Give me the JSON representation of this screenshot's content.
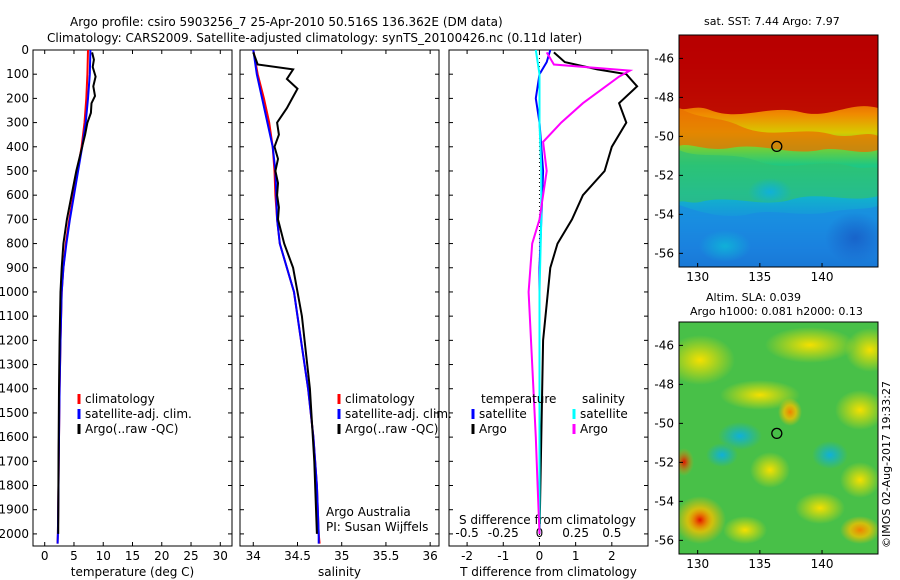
{
  "header": {
    "title_line1": "Argo profile: csiro 5903256_7 25-Apr-2010 50.516S 136.362E (DM data)",
    "title_line2": "Climatology: CARS2009. Satellite-adjusted climatology: synTS_20100426.nc (0.11d later)"
  },
  "colors": {
    "climatology": "#ff0000",
    "satellite": "#0000ff",
    "argo": "#000000",
    "salinity_satellite": "#00ffff",
    "salinity_argo": "#ff00ff"
  },
  "chart_data": [
    {
      "type": "line",
      "name": "temperature-profile",
      "xlabel": "temperature (deg C)",
      "ylabel": "",
      "xlim": [
        -2,
        32
      ],
      "ylim": [
        2050,
        0
      ],
      "xticks": [
        "0",
        "5",
        "10",
        "15",
        "20",
        "25",
        "30"
      ],
      "xtick_values": [
        0,
        5,
        10,
        15,
        20,
        25,
        30
      ],
      "yticks": [
        "0",
        "100",
        "200",
        "300",
        "400",
        "500",
        "600",
        "700",
        "800",
        "900",
        "1000",
        "1100",
        "1200",
        "1300",
        "1400",
        "1500",
        "1600",
        "1700",
        "1800",
        "1900",
        "2000"
      ],
      "ytick_values": [
        0,
        100,
        200,
        300,
        400,
        500,
        600,
        700,
        800,
        900,
        1000,
        1100,
        1200,
        1300,
        1400,
        1500,
        1600,
        1700,
        1800,
        1900,
        2000
      ],
      "legend": [
        "climatology",
        "satellite-adj. clim.",
        "Argo(..raw -QC)"
      ],
      "series": [
        {
          "name": "climatology",
          "color": "#ff0000",
          "x": [
            7.4,
            7.3,
            7.1,
            6.8,
            6.3,
            5.6,
            4.9,
            4.2,
            3.6,
            3.2,
            2.9,
            2.7,
            2.55,
            2.45,
            2.35,
            2.3,
            2.25,
            2.2,
            2.2
          ],
          "y": [
            0,
            100,
            200,
            300,
            400,
            500,
            600,
            700,
            800,
            900,
            1000,
            1200,
            1400,
            1600,
            1800,
            1900,
            2000,
            2030,
            2040
          ]
        },
        {
          "name": "satellite-adj. clim.",
          "color": "#0000ff",
          "x": [
            7.8,
            7.7,
            7.4,
            7.0,
            6.4,
            5.7,
            5.0,
            4.3,
            3.7,
            3.2,
            2.9,
            2.7,
            2.55,
            2.45,
            2.35,
            2.3,
            2.25,
            2.2
          ],
          "y": [
            0,
            100,
            200,
            300,
            400,
            500,
            600,
            700,
            800,
            900,
            1000,
            1200,
            1400,
            1600,
            1800,
            1900,
            2000,
            2040
          ]
        },
        {
          "name": "Argo(..raw -QC)",
          "color": "#000000",
          "x": [
            8.1,
            8.4,
            8.2,
            8.7,
            8.3,
            8.6,
            8.0,
            7.9,
            7.3,
            6.9,
            6.2,
            5.4,
            4.6,
            3.8,
            3.2,
            2.9,
            2.7,
            2.55,
            2.45,
            2.35,
            2.3
          ],
          "y": [
            10,
            40,
            70,
            110,
            150,
            190,
            220,
            260,
            300,
            350,
            420,
            500,
            600,
            700,
            800,
            900,
            1000,
            1200,
            1400,
            1700,
            2000
          ]
        }
      ]
    },
    {
      "type": "line",
      "name": "salinity-profile",
      "xlabel": "salinity",
      "ylabel": "",
      "xlim": [
        33.85,
        36.1
      ],
      "ylim": [
        2050,
        0
      ],
      "xticks": [
        "34",
        "34.5",
        "35",
        "35.5",
        "36"
      ],
      "xtick_values": [
        34,
        34.5,
        35,
        35.5,
        36
      ],
      "legend": [
        "climatology",
        "satellite-adj. clim.",
        "Argo(..raw -QC)"
      ],
      "annotation_line1": "Argo Australia",
      "annotation_line2": "PI: Susan Wijffels",
      "series": [
        {
          "name": "climatology",
          "color": "#ff0000",
          "x": [
            34.0,
            34.05,
            34.12,
            34.18,
            34.22,
            34.24,
            34.25,
            34.27,
            34.3,
            34.38,
            34.46,
            34.54,
            34.62,
            34.68,
            34.72,
            34.74,
            34.75
          ],
          "y": [
            0,
            100,
            200,
            300,
            400,
            500,
            600,
            700,
            800,
            900,
            1000,
            1200,
            1400,
            1600,
            1800,
            2000,
            2040
          ]
        },
        {
          "name": "satellite-adj. clim.",
          "color": "#0000ff",
          "x": [
            34.0,
            34.04,
            34.1,
            34.16,
            34.22,
            34.25,
            34.26,
            34.27,
            34.3,
            34.38,
            34.46,
            34.54,
            34.62,
            34.68,
            34.72,
            34.74,
            34.74
          ],
          "y": [
            0,
            100,
            200,
            300,
            400,
            500,
            600,
            700,
            800,
            900,
            1000,
            1200,
            1400,
            1600,
            1800,
            2000,
            2040
          ]
        },
        {
          "name": "Argo(..raw -QC)",
          "color": "#000000",
          "x": [
            34.0,
            34.05,
            34.45,
            34.38,
            34.5,
            34.44,
            34.38,
            34.27,
            34.29,
            34.24,
            34.28,
            34.25,
            34.28,
            34.27,
            34.29,
            34.28,
            34.35,
            34.45,
            34.55,
            34.64,
            34.69,
            34.72
          ],
          "y": [
            10,
            60,
            80,
            120,
            160,
            200,
            240,
            300,
            350,
            400,
            450,
            500,
            550,
            600,
            650,
            700,
            800,
            900,
            1100,
            1400,
            1700,
            2000
          ]
        }
      ]
    },
    {
      "type": "line",
      "name": "difference-profile",
      "xlabel": "T difference from climatology",
      "xlabel_top": "S difference from climatology",
      "xlim": [
        -2.5,
        3
      ],
      "ylim": [
        2050,
        0
      ],
      "xticks": [
        "-2",
        "-1",
        "0",
        "1",
        "2"
      ],
      "xtick_values": [
        -2,
        -1,
        0,
        1,
        2
      ],
      "xticks_top": [
        "-0.5",
        "-0.25",
        "0",
        "0.25",
        "0.5"
      ],
      "xtick_top_positions": [
        -2,
        -1,
        0,
        1,
        2
      ],
      "legend_temperature_title": "temperature",
      "legend_salinity_title": "salinity",
      "legend": [
        "satellite",
        "Argo",
        "satellite",
        "Argo"
      ],
      "series": [
        {
          "name": "temperature satellite",
          "color": "#0000ff",
          "x": [
            0.3,
            0.2,
            0.0,
            -0.1,
            0.0,
            0.05,
            0.1,
            0.05,
            0.0,
            0.0,
            0.0
          ],
          "y": [
            0,
            50,
            100,
            200,
            300,
            400,
            500,
            700,
            900,
            1400,
            2000
          ]
        },
        {
          "name": "temperature Argo",
          "color": "#000000",
          "x": [
            0.4,
            0.7,
            1.6,
            2.4,
            2.7,
            2.2,
            2.4,
            2.0,
            1.8,
            1.2,
            0.9,
            0.5,
            0.3,
            0.1,
            0.05,
            0.0
          ],
          "y": [
            10,
            50,
            80,
            100,
            150,
            220,
            300,
            400,
            500,
            600,
            700,
            800,
            900,
            1200,
            1600,
            2000
          ]
        },
        {
          "name": "salinity satellite",
          "color": "#00ffff",
          "x": [
            -0.1,
            0.0,
            0.0,
            0.05,
            0.05,
            0.0,
            0.0,
            0.0
          ],
          "y": [
            0,
            100,
            300,
            500,
            700,
            1000,
            1500,
            2000
          ]
        },
        {
          "name": "salinity Argo",
          "color": "#ff00ff",
          "x": [
            0.2,
            0.4,
            2.5,
            2.2,
            1.2,
            0.6,
            0.1,
            0.2,
            0.0,
            -0.2,
            -0.3,
            -0.2,
            -0.1,
            -0.05,
            0.0
          ],
          "y": [
            10,
            60,
            85,
            110,
            220,
            300,
            380,
            500,
            700,
            800,
            1000,
            1300,
            1600,
            1800,
            2000
          ]
        }
      ]
    },
    {
      "type": "heatmap",
      "name": "sst-map",
      "title": "sat. SST: 7.44 Argo: 7.97",
      "xlim": [
        128.5,
        144.5
      ],
      "ylim": [
        -56.7,
        -44.8
      ],
      "xticks": [
        "130",
        "135",
        "140"
      ],
      "xtick_values": [
        130,
        135,
        140
      ],
      "yticks": [
        "-46",
        "-48",
        "-50",
        "-52",
        "-54",
        "-56"
      ],
      "ytick_values": [
        -46,
        -48,
        -50,
        -52,
        -54,
        -56
      ],
      "argo_position": {
        "lon": 136.362,
        "lat": -50.516
      }
    },
    {
      "type": "heatmap",
      "name": "sla-map",
      "title_line1": "Altim. SLA: 0.039",
      "title_line2": "Argo h1000: 0.081 h2000: 0.13",
      "xlim": [
        128.5,
        144.5
      ],
      "ylim": [
        -56.7,
        -44.8
      ],
      "xticks": [
        "130",
        "135",
        "140"
      ],
      "xtick_values": [
        130,
        135,
        140
      ],
      "yticks": [
        "-46",
        "-48",
        "-50",
        "-52",
        "-54",
        "-56"
      ],
      "ytick_values": [
        -46,
        -48,
        -50,
        -52,
        -54,
        -56
      ],
      "argo_position": {
        "lon": 136.362,
        "lat": -50.516
      }
    }
  ],
  "credit": "©IMOS 02-Aug-2017 19:33:27"
}
